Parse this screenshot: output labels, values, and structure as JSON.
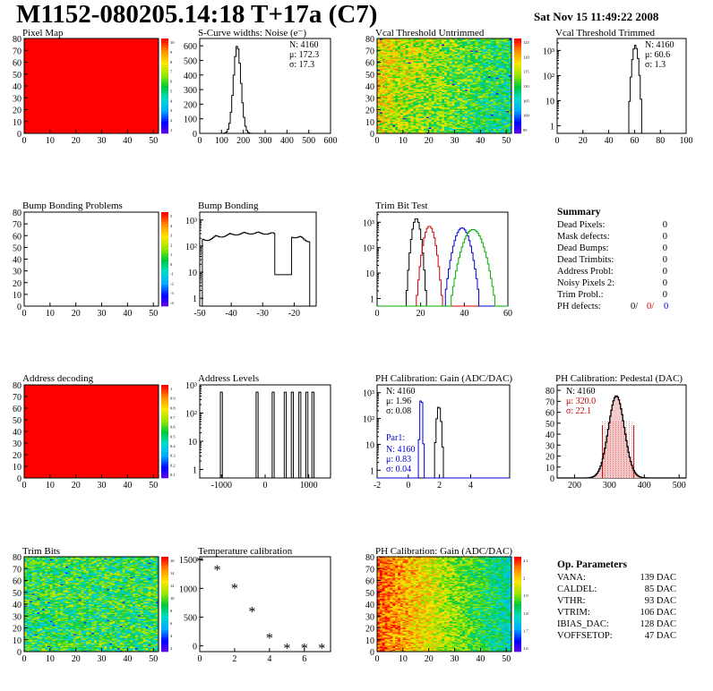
{
  "header": {
    "title": "M1152-080205.14:18 T+17a (C7)",
    "date": "Sat Nov 15 11:49:22 2008"
  },
  "colors": {
    "map_red": "#ff0000",
    "hist_black": "#000000",
    "series_red": "#cc0000",
    "series_green": "#00aa00",
    "series_blue": "#0000cc",
    "text_blue": "#0000cc",
    "text_red": "#cc0000"
  },
  "chart_data": [
    {
      "id": "pixel-map",
      "type": "heatmap",
      "title": "Pixel Map",
      "xlim": [
        0,
        52
      ],
      "ylim": [
        0,
        80
      ],
      "xticks": [
        "0",
        "10",
        "20",
        "30",
        "40",
        "50"
      ],
      "yticks": [
        "0",
        "10",
        "20",
        "30",
        "40",
        "50",
        "60",
        "70",
        "80"
      ],
      "fill": "uniform",
      "fill_color": "#ff0000",
      "zlim": [
        0,
        10
      ],
      "palette_ticks": [
        "10",
        "9",
        "8",
        "7",
        "6",
        "5",
        "4",
        "3",
        "2",
        "1"
      ]
    },
    {
      "id": "s-curve",
      "type": "histogram",
      "title": "S-Curve widths: Noise (e⁻)",
      "xlim": [
        0,
        600
      ],
      "ylim": [
        0,
        650
      ],
      "xticks": [
        "0",
        "100",
        "200",
        "300",
        "400",
        "500",
        "600"
      ],
      "yticks": [
        "0",
        "100",
        "200",
        "300",
        "400",
        "500",
        "600"
      ],
      "stats": [
        "N: 4160",
        "μ: 172.3",
        "σ: 17.3"
      ],
      "series": [
        {
          "color": "#000000",
          "peaks": [
            {
              "mean": 172,
              "sigma": 17,
              "height": 600
            }
          ]
        }
      ]
    },
    {
      "id": "vcal-untrimmed",
      "type": "heatmap",
      "title": "Vcal Threshold Untrimmed",
      "xlim": [
        0,
        52
      ],
      "ylim": [
        0,
        80
      ],
      "xticks": [
        "0",
        "10",
        "20",
        "30",
        "40",
        "50"
      ],
      "yticks": [
        "0",
        "10",
        "20",
        "30",
        "40",
        "50",
        "60",
        "70",
        "80"
      ],
      "fill": "noise-yellow-cyan",
      "zlim": [
        90,
        130
      ],
      "palette_ticks": [
        "125",
        "120",
        "115",
        "110",
        "105",
        "100",
        "95"
      ]
    },
    {
      "id": "vcal-trimmed",
      "type": "histogram",
      "title": "Vcal Threshold Trimmed",
      "log": true,
      "xlim": [
        0,
        100
      ],
      "ylim": [
        0.5,
        3000
      ],
      "xticks": [
        "0",
        "20",
        "40",
        "60",
        "80",
        "100"
      ],
      "stats": [
        "N: 4160",
        "μ: 60.6",
        "σ:  1.3"
      ],
      "series": [
        {
          "color": "#000000",
          "peaks": [
            {
              "mean": 60.6,
              "sigma": 1.4,
              "height": 1600
            }
          ]
        }
      ]
    },
    {
      "id": "bump-problems",
      "type": "heatmap",
      "title": "Bump Bonding Problems",
      "xlim": [
        0,
        52
      ],
      "ylim": [
        0,
        80
      ],
      "xticks": [
        "0",
        "10",
        "20",
        "30",
        "40",
        "50"
      ],
      "yticks": [
        "0",
        "10",
        "20",
        "30",
        "40",
        "50",
        "60",
        "70",
        "80"
      ],
      "fill": "empty",
      "zlim": [
        0,
        5
      ],
      "palette_ticks": [
        "5",
        "4",
        "3",
        "2",
        "1",
        "0",
        "-1",
        "-2",
        "-3",
        "-4"
      ]
    },
    {
      "id": "bump-bonding",
      "type": "histogram",
      "title": "Bump Bonding",
      "log": true,
      "xlim": [
        -50,
        -13
      ],
      "ylim": [
        0.5,
        2000
      ],
      "xticks": [
        "-50",
        "-40",
        "-30",
        "-20"
      ],
      "series": [
        {
          "color": "#000000",
          "shape": "bump"
        }
      ]
    },
    {
      "id": "trim-bit-test",
      "type": "histogram",
      "title": "Trim Bit Test",
      "log": true,
      "xlim": [
        0,
        60
      ],
      "ylim": [
        0.5,
        2500
      ],
      "xticks": [
        "0",
        "20",
        "40",
        "60"
      ],
      "series": [
        {
          "color": "#000000",
          "peaks": [
            {
              "mean": 18,
              "sigma": 1.2,
              "height": 1400
            }
          ]
        },
        {
          "color": "#cc0000",
          "peaks": [
            {
              "mean": 24,
              "sigma": 1.6,
              "height": 700
            }
          ]
        },
        {
          "color": "#0000cc",
          "peaks": [
            {
              "mean": 39,
              "sigma": 2.2,
              "height": 600
            }
          ]
        },
        {
          "color": "#00aa00",
          "peaks": [
            {
              "mean": 44,
              "sigma": 2.8,
              "height": 520
            }
          ]
        }
      ]
    },
    {
      "id": "address-decoding",
      "type": "heatmap",
      "title": "Address decoding",
      "xlim": [
        0,
        52
      ],
      "ylim": [
        0,
        80
      ],
      "xticks": [
        "0",
        "10",
        "20",
        "30",
        "40",
        "50"
      ],
      "yticks": [
        "0",
        "10",
        "20",
        "30",
        "40",
        "50",
        "60",
        "70",
        "80"
      ],
      "fill": "uniform",
      "fill_color": "#ff0000",
      "zlim": [
        0,
        1
      ],
      "palette_ticks": [
        "1",
        "0.9",
        "0.8",
        "0.7",
        "0.6",
        "0.5",
        "0.4",
        "0.3",
        "0.2",
        "0.1"
      ]
    },
    {
      "id": "address-levels",
      "type": "histogram",
      "title": "Address Levels",
      "log": true,
      "xlim": [
        -1500,
        1500
      ],
      "ylim": [
        0.5,
        1000
      ],
      "xticks": [
        "-1000",
        "0",
        "1000"
      ],
      "series": [
        {
          "color": "#000000",
          "spikes": [
            -1000,
            -180,
            180,
            460,
            620,
            800,
            960,
            1100
          ],
          "height": 550
        }
      ]
    },
    {
      "id": "ph-gain",
      "type": "histogram",
      "title": "PH Calibration: Gain (ADC/DAC)",
      "log": true,
      "xlim": [
        -2,
        6.5
      ],
      "ylim": [
        0.5,
        2000
      ],
      "xticks": [
        "-2",
        "0",
        "2",
        "4"
      ],
      "stats": [
        "N: 4160",
        "μ: 1.96",
        "σ: 0.08"
      ],
      "stats2_title": "Par1:",
      "stats2": [
        "N: 4160",
        "μ: 0.83",
        "σ: 0.04"
      ],
      "series": [
        {
          "color": "#000000",
          "peaks": [
            {
              "mean": 1.96,
              "sigma": 0.09,
              "height": 300
            }
          ]
        },
        {
          "color": "#0000cc",
          "peaks": [
            {
              "mean": 0.83,
              "sigma": 0.05,
              "height": 700
            }
          ]
        }
      ]
    },
    {
      "id": "ph-pedestal",
      "type": "histogram",
      "title": "PH Calibration: Pedestal (DAC)",
      "xlim": [
        150,
        520
      ],
      "ylim": [
        0,
        85
      ],
      "xticks": [
        "200",
        "300",
        "400",
        "500"
      ],
      "yticks": [
        "0",
        "10",
        "20",
        "30",
        "40",
        "50",
        "60",
        "70",
        "80"
      ],
      "stats": [
        "N: 4160",
        "μ: 320.0",
        "σ: 22.1"
      ],
      "series": [
        {
          "color": "#000000",
          "peaks": [
            {
              "mean": 320,
              "sigma": 23,
              "height": 75
            }
          ]
        }
      ],
      "fit_band": [
        280,
        370
      ]
    },
    {
      "id": "trim-bits",
      "type": "heatmap",
      "title": "Trim Bits",
      "xlim": [
        0,
        52
      ],
      "ylim": [
        0,
        80
      ],
      "xticks": [
        "0",
        "10",
        "20",
        "30",
        "40",
        "50"
      ],
      "yticks": [
        "0",
        "10",
        "20",
        "30",
        "40",
        "50",
        "60",
        "70",
        "80"
      ],
      "fill": "noise-cyan-green",
      "zlim": [
        0,
        16
      ],
      "palette_ticks": [
        "16",
        "14",
        "12",
        "10",
        "8",
        "6",
        "4",
        "2"
      ]
    },
    {
      "id": "temperature",
      "type": "scatter",
      "title": "Temperature calibration",
      "xlim": [
        0,
        7.5
      ],
      "ylim": [
        -100,
        1550
      ],
      "xticks": [
        "0",
        "2",
        "4",
        "6"
      ],
      "yticks": [
        "0",
        "500",
        "1000",
        "1500"
      ],
      "x": [
        0,
        1,
        2,
        3,
        4,
        5,
        6,
        7
      ],
      "y": [
        1480,
        1330,
        1010,
        610,
        150,
        -30,
        -30,
        -30
      ]
    },
    {
      "id": "ph-gain-map",
      "type": "heatmap",
      "title": "PH Calibration: Gain (ADC/DAC)",
      "xlim": [
        0,
        52
      ],
      "ylim": [
        0,
        80
      ],
      "xticks": [
        "0",
        "10",
        "20",
        "30",
        "40",
        "50"
      ],
      "yticks": [
        "0",
        "10",
        "20",
        "30",
        "40",
        "50",
        "60",
        "70",
        "80"
      ],
      "fill": "gradient-red-green",
      "zlim": [
        1.6,
        2.1
      ],
      "palette_ticks": [
        "2.1",
        "2",
        "1.9",
        "1.8",
        "1.7",
        "1.6"
      ]
    }
  ],
  "summary": {
    "title": "Summary",
    "rows": [
      {
        "label": "Dead Pixels:",
        "value": "0"
      },
      {
        "label": "Mask defects:",
        "value": "0"
      },
      {
        "label": "Dead Bumps:",
        "value": "0"
      },
      {
        "label": "Dead Trimbits:",
        "value": "0"
      },
      {
        "label": "Address Probl:",
        "value": "0"
      },
      {
        "label": "Noisy Pixels 2:",
        "value": "0"
      },
      {
        "label": "Trim Probl.:",
        "value": "0"
      }
    ],
    "ph_label": "PH defects:",
    "ph_values": [
      "0/",
      "0/",
      "0"
    ]
  },
  "op_params": {
    "title": "Op. Parameters",
    "rows": [
      {
        "label": "VANA:",
        "value": "139 DAC"
      },
      {
        "label": "CALDEL:",
        "value": "85 DAC"
      },
      {
        "label": "VTHR:",
        "value": "93 DAC"
      },
      {
        "label": "VTRIM:",
        "value": "106 DAC"
      },
      {
        "label": "IBIAS_DAC:",
        "value": "128 DAC"
      },
      {
        "label": "VOFFSETOP:",
        "value": "47 DAC"
      }
    ]
  }
}
